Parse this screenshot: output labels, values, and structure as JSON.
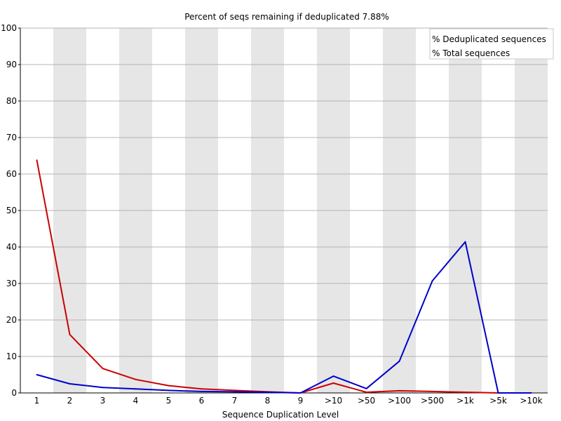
{
  "chart_data": {
    "type": "line",
    "title": "Percent of seqs remaining if deduplicated 7.88%",
    "xlabel": "Sequence Duplication Level",
    "ylabel": "",
    "categories": [
      "1",
      "2",
      "3",
      "4",
      "5",
      "6",
      "7",
      "8",
      "9",
      ">10",
      ">50",
      ">100",
      ">500",
      ">1k",
      ">5k",
      ">10k"
    ],
    "ylim": [
      0,
      100
    ],
    "yticks": [
      0,
      10,
      20,
      30,
      40,
      50,
      60,
      70,
      80,
      90,
      100
    ],
    "grid": true,
    "legend_position": "top-right",
    "series": [
      {
        "name": "% Deduplicated sequences",
        "color": "#cc0000",
        "values": [
          63.8,
          16.0,
          6.7,
          3.7,
          2.0,
          1.1,
          0.7,
          0.3,
          0.0,
          2.7,
          0.2,
          0.6,
          0.4,
          0.2,
          0.0,
          0.0
        ]
      },
      {
        "name": "% Total sequences",
        "color": "#0000cc",
        "values": [
          5.0,
          2.5,
          1.5,
          1.1,
          0.7,
          0.4,
          0.3,
          0.2,
          0.0,
          4.6,
          1.2,
          8.7,
          30.7,
          41.4,
          0.0,
          0.0
        ]
      }
    ]
  }
}
